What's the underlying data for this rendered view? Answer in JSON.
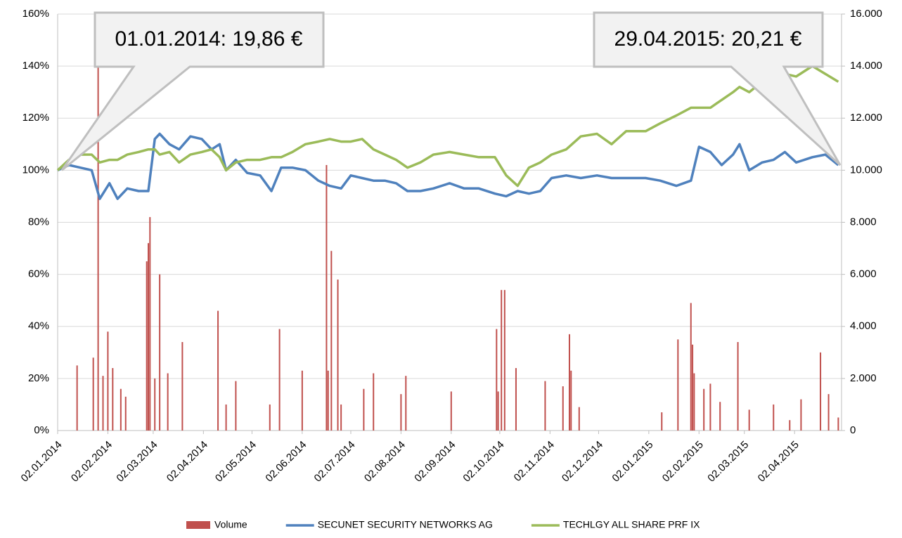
{
  "chart_data": {
    "type": "combo",
    "x": [
      "02.01.2014",
      "09.01.2014",
      "16.01.2014",
      "23.01.2014",
      "28.01.2014",
      "03.02.2014",
      "08.02.2014",
      "14.02.2014",
      "21.02.2014",
      "27.02.2014",
      "03.03.2014",
      "06.03.2014",
      "12.03.2014",
      "18.03.2014",
      "25.03.2014",
      "01.04.2014",
      "07.04.2014",
      "12.04.2014",
      "16.04.2014",
      "22.04.2014",
      "29.04.2014",
      "07.05.2014",
      "14.05.2014",
      "20.05.2014",
      "27.05.2014",
      "04.06.2014",
      "12.06.2014",
      "19.06.2014",
      "26.06.2014",
      "02.07.2014",
      "09.07.2014",
      "16.07.2014",
      "23.07.2014",
      "30.07.2014",
      "06.08.2014",
      "14.08.2014",
      "22.08.2014",
      "01.09.2014",
      "10.09.2014",
      "19.09.2014",
      "29.09.2014",
      "06.10.2014",
      "13.10.2014",
      "20.10.2014",
      "27.10.2014",
      "03.11.2014",
      "12.11.2014",
      "21.11.2014",
      "01.12.2014",
      "10.12.2014",
      "19.12.2014",
      "31.12.2014",
      "09.01.2015",
      "19.01.2015",
      "28.01.2015",
      "02.02.2015",
      "09.02.2015",
      "16.02.2015",
      "23.02.2015",
      "27.02.2015",
      "05.03.2015",
      "13.03.2015",
      "20.03.2015",
      "27.03.2015",
      "03.04.2015",
      "13.04.2015",
      "21.04.2015",
      "29.04.2015"
    ],
    "series": [
      {
        "name": "Volume",
        "type": "bar",
        "axis": "y2",
        "color": "#c0504d",
        "x": [
          "14.01.2014",
          "24.01.2014",
          "27.01.2014",
          "30.01.2014",
          "02.02.2014",
          "05.02.2014",
          "10.02.2014",
          "13.02.2014",
          "26.02.2014",
          "27.02.2014",
          "28.02.2014",
          "03.03.2014",
          "06.03.2014",
          "11.03.2014",
          "20.03.2014",
          "11.04.2014",
          "16.04.2014",
          "22.04.2014",
          "13.05.2014",
          "19.05.2014",
          "02.06.2014",
          "17.06.2014",
          "18.06.2014",
          "20.06.2014",
          "24.06.2014",
          "26.06.2014",
          "10.07.2014",
          "16.07.2014",
          "02.08.2014",
          "05.08.2014",
          "02.09.2014",
          "30.09.2014",
          "01.10.2014",
          "03.10.2014",
          "05.10.2014",
          "12.10.2014",
          "30.10.2014",
          "10.11.2014",
          "14.11.2014",
          "15.11.2014",
          "20.11.2014",
          "10.01.2015",
          "20.01.2015",
          "28.01.2015",
          "29.01.2015",
          "30.01.2015",
          "05.02.2015",
          "09.02.2015",
          "15.02.2015",
          "26.02.2015",
          "05.03.2015",
          "20.03.2015",
          "30.03.2015",
          "06.04.2015",
          "18.04.2015",
          "23.04.2015",
          "29.04.2015"
        ],
        "values": [
          2500,
          2800,
          14000,
          2100,
          3800,
          2400,
          1600,
          1300,
          6500,
          7200,
          8200,
          2000,
          6000,
          2200,
          3400,
          4600,
          1000,
          1900,
          1000,
          3900,
          2300,
          10200,
          2300,
          6900,
          5800,
          1000,
          1600,
          2200,
          1400,
          2100,
          1500,
          3900,
          1500,
          5400,
          5400,
          2400,
          1900,
          1700,
          3700,
          2300,
          900,
          700,
          3500,
          4900,
          3300,
          2200,
          1600,
          1800,
          1100,
          3400,
          800,
          1000,
          400,
          1200,
          3000,
          1400,
          500
        ]
      },
      {
        "name": "SECUNET SECURITY NETWORKS AG",
        "type": "line",
        "axis": "y",
        "color": "#4f81bd",
        "values": [
          100,
          102,
          101,
          100,
          89,
          95,
          89,
          93,
          92,
          92,
          112,
          114,
          110,
          108,
          113,
          112,
          108,
          110,
          100,
          104,
          99,
          98,
          92,
          101,
          101,
          100,
          96,
          94,
          93,
          98,
          97,
          96,
          96,
          95,
          92,
          92,
          93,
          95,
          93,
          93,
          91,
          90,
          92,
          91,
          92,
          97,
          98,
          97,
          98,
          97,
          97,
          97,
          96,
          94,
          96,
          109,
          107,
          102,
          106,
          110,
          100,
          103,
          104,
          107,
          103,
          105,
          106,
          102
        ]
      },
      {
        "name": "TECHLGY ALL SHARE PRF IX",
        "type": "line",
        "axis": "y",
        "color": "#9bbb59",
        "values": [
          100,
          104,
          106,
          106,
          103,
          104,
          104,
          106,
          107,
          108,
          108,
          106,
          107,
          103,
          106,
          107,
          108,
          105,
          100,
          103,
          104,
          104,
          105,
          105,
          107,
          110,
          111,
          112,
          111,
          111,
          112,
          108,
          106,
          104,
          101,
          103,
          106,
          107,
          106,
          105,
          105,
          98,
          94,
          101,
          103,
          106,
          108,
          113,
          114,
          110,
          115,
          115,
          118,
          121,
          124,
          124,
          124,
          127,
          130,
          132,
          130,
          134,
          136,
          137,
          136,
          140,
          137,
          134
        ]
      }
    ],
    "xlim": [
      "02.01.2014",
      "01.05.2015"
    ],
    "xticks": [
      "02.01.2014",
      "02.02.2014",
      "02.03.2014",
      "02.04.2014",
      "02.05.2014",
      "02.06.2014",
      "02.07.2014",
      "02.08.2014",
      "02.09.2014",
      "02.10.2014",
      "02.11.2014",
      "02.12.2014",
      "02.01.2015",
      "02.02.2015",
      "02.03.2015",
      "02.04.2015"
    ],
    "ylim": [
      0,
      160
    ],
    "yticks": [
      {
        "value": 0,
        "label": "0%"
      },
      {
        "value": 20,
        "label": "20%"
      },
      {
        "value": 40,
        "label": "40%"
      },
      {
        "value": 60,
        "label": "60%"
      },
      {
        "value": 80,
        "label": "80%"
      },
      {
        "value": 100,
        "label": "100%"
      },
      {
        "value": 120,
        "label": "120%"
      },
      {
        "value": 140,
        "label": "140%"
      },
      {
        "value": 160,
        "label": "160%"
      }
    ],
    "y2lim": [
      0,
      16000
    ],
    "y2ticks": [
      0,
      {
        "value": 2000,
        "label": "2.000"
      },
      {
        "value": 4000,
        "label": "4.000"
      },
      {
        "value": 6000,
        "label": "6.000"
      },
      {
        "value": 8000,
        "label": "8.000"
      },
      {
        "value": 10000,
        "label": "10.000"
      },
      {
        "value": 12000,
        "label": "12.000"
      },
      {
        "value": 14000,
        "label": "14.000"
      },
      {
        "value": 16000,
        "label": "16.000"
      }
    ],
    "grid": true,
    "legend": "bottom",
    "annotations": [
      "01.01.2014: 19,86 €",
      "29.04.2015: 20,21 €"
    ]
  }
}
